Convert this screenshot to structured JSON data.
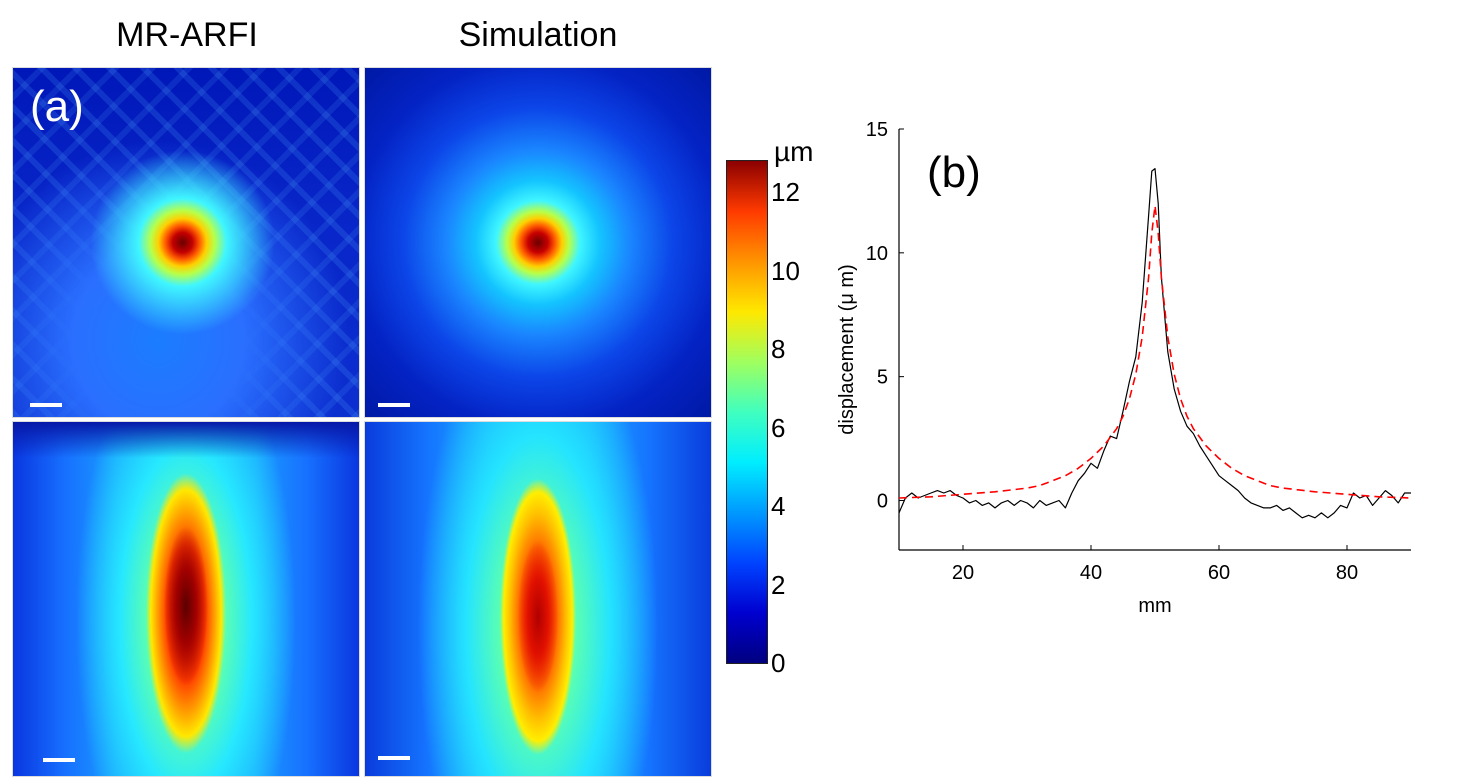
{
  "panel_a": {
    "label": "(a)",
    "column_titles": [
      "MR-ARFI",
      "Simulation"
    ]
  },
  "colorbar": {
    "unit": "µm",
    "min": 0,
    "max": 12.8,
    "ticks": [
      "0",
      "2",
      "4",
      "6",
      "8",
      "10",
      "12"
    ]
  },
  "chart_data": {
    "type": "line",
    "label": "(b)",
    "xlabel": "mm",
    "ylabel": "displacement (μ m)",
    "xlim": [
      10,
      90
    ],
    "ylim": [
      -2,
      15
    ],
    "xticks": [
      20,
      40,
      60,
      80
    ],
    "yticks": [
      0,
      5,
      10,
      15
    ],
    "grid": false,
    "series": [
      {
        "name": "MR-ARFI",
        "color": "#000000",
        "dash": "solid",
        "x": [
          10,
          11,
          12,
          13,
          14,
          15,
          16,
          17,
          18,
          19,
          20,
          21,
          22,
          23,
          24,
          25,
          26,
          27,
          28,
          29,
          30,
          31,
          32,
          33,
          34,
          35,
          36,
          37,
          38,
          39,
          40,
          41,
          42,
          43,
          44,
          45,
          46,
          47,
          48,
          49,
          49.5,
          50,
          50.5,
          51,
          52,
          53,
          54,
          55,
          56,
          57,
          58,
          59,
          60,
          61,
          62,
          63,
          64,
          65,
          66,
          67,
          68,
          69,
          70,
          71,
          72,
          73,
          74,
          75,
          76,
          77,
          78,
          79,
          80,
          81,
          82,
          83,
          84,
          85,
          86,
          87,
          88,
          89,
          90
        ],
        "y": [
          -0.5,
          0.1,
          0.3,
          0.1,
          0.2,
          0.3,
          0.4,
          0.3,
          0.4,
          0.2,
          0.1,
          -0.1,
          0.0,
          -0.2,
          -0.1,
          -0.3,
          -0.1,
          0.0,
          -0.2,
          0.0,
          -0.1,
          -0.3,
          0.0,
          -0.2,
          -0.1,
          0.0,
          -0.3,
          0.3,
          0.8,
          1.1,
          1.5,
          1.3,
          2.0,
          2.6,
          2.5,
          3.6,
          4.8,
          5.8,
          8.0,
          11.5,
          13.3,
          13.4,
          12.0,
          9.0,
          6.0,
          4.5,
          3.6,
          3.0,
          2.7,
          2.2,
          1.8,
          1.4,
          1.0,
          0.8,
          0.6,
          0.4,
          0.1,
          -0.1,
          -0.2,
          -0.3,
          -0.3,
          -0.2,
          -0.4,
          -0.3,
          -0.5,
          -0.7,
          -0.6,
          -0.7,
          -0.5,
          -0.7,
          -0.5,
          -0.2,
          -0.3,
          0.3,
          0.1,
          0.2,
          -0.2,
          0.1,
          0.4,
          0.2,
          -0.1,
          0.3,
          0.3
        ]
      },
      {
        "name": "Simulation",
        "color": "#ff0000",
        "dash": "dashed",
        "x": [
          10,
          15,
          20,
          25,
          30,
          32,
          34,
          36,
          38,
          40,
          42,
          44,
          45,
          46,
          47,
          48,
          49,
          49.5,
          50,
          50.5,
          51,
          52,
          53,
          54,
          55,
          56,
          58,
          60,
          62,
          64,
          66,
          68,
          70,
          75,
          80,
          85,
          90
        ],
        "y": [
          0.1,
          0.15,
          0.25,
          0.35,
          0.5,
          0.6,
          0.8,
          1.0,
          1.3,
          1.7,
          2.2,
          2.9,
          3.4,
          4.1,
          5.1,
          6.6,
          9.0,
          10.8,
          11.9,
          10.8,
          9.0,
          6.6,
          5.1,
          4.1,
          3.4,
          2.9,
          2.2,
          1.7,
          1.3,
          1.0,
          0.8,
          0.6,
          0.5,
          0.35,
          0.25,
          0.15,
          0.1
        ]
      }
    ]
  }
}
